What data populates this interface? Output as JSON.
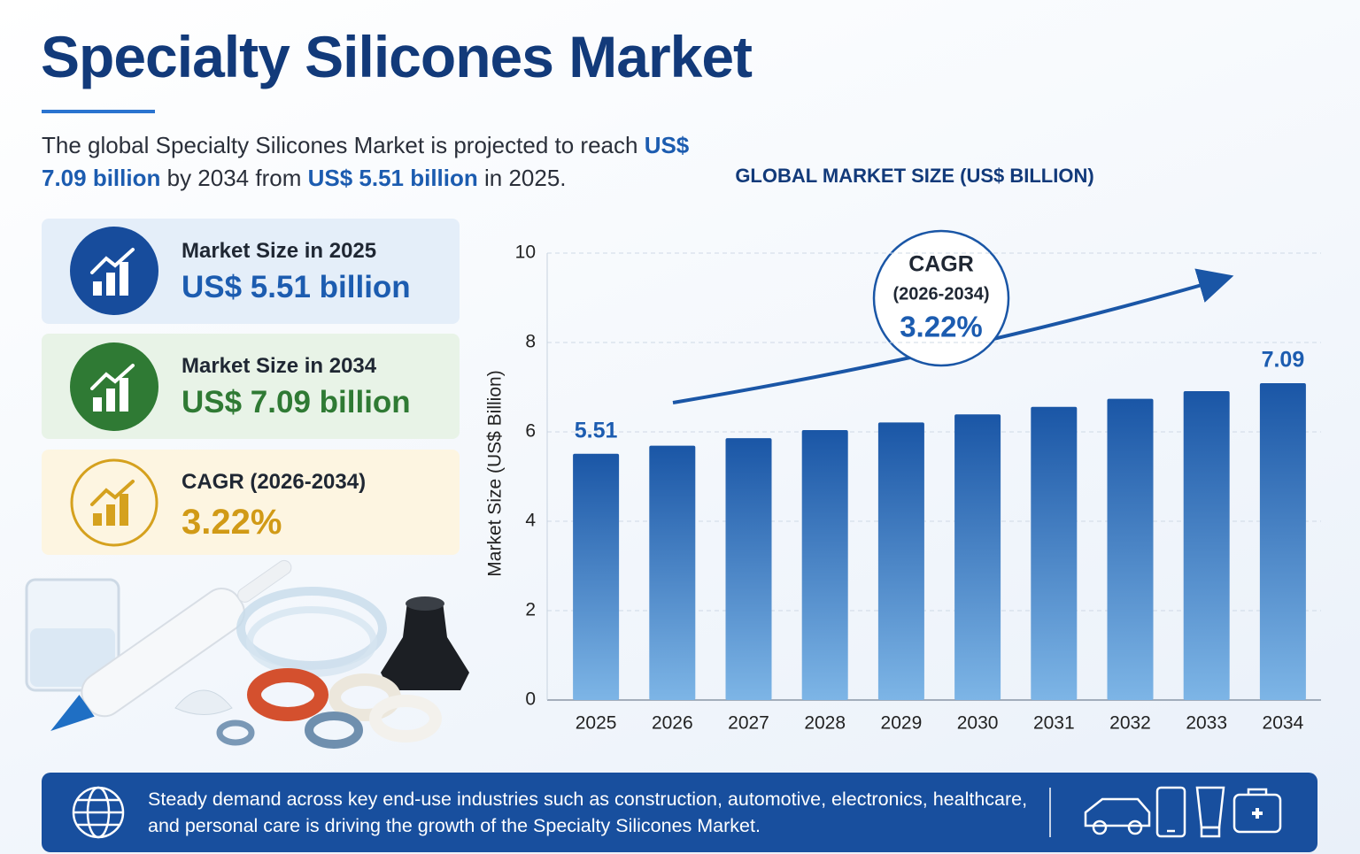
{
  "title": "Specialty Silicones Market",
  "intro": {
    "text_1": "The global Specialty Silicones Market is projected to reach",
    "highlight_1": "US$ 7.09 billion",
    "text_2": "by 2034 from",
    "highlight_2": "US$ 5.51 billion",
    "text_3": "in 2025."
  },
  "cards": [
    {
      "label": "Market Size in 2025",
      "value": "US$ 5.51 billion"
    },
    {
      "label": "Market Size in 2034",
      "value": "US$ 7.09 billion"
    },
    {
      "label": "CAGR (2026-2034)",
      "value": "3.22%"
    }
  ],
  "cagr_badge": {
    "label": "CAGR",
    "period": "(2026-2034)",
    "value": "3.22%"
  },
  "footer": "Steady demand across key end-use industries such as construction, automotive, electronics, healthcare, and personal care is driving the growth of the Specialty Silicones Market.",
  "chart_data": {
    "type": "bar",
    "title": "GLOBAL MARKET SIZE (US$ BILLION)",
    "y_label": "Market Size (US$ Billion)",
    "categories": [
      "2025",
      "2026",
      "2027",
      "2028",
      "2029",
      "2030",
      "2031",
      "2032",
      "2033",
      "2034"
    ],
    "values": [
      5.51,
      5.69,
      5.86,
      6.04,
      6.21,
      6.39,
      6.56,
      6.74,
      6.91,
      7.09
    ],
    "color": "#1a56a6",
    "ylim": [
      0,
      10
    ],
    "yticks": [
      0,
      2,
      4,
      6,
      8,
      10
    ],
    "grid": true
  }
}
